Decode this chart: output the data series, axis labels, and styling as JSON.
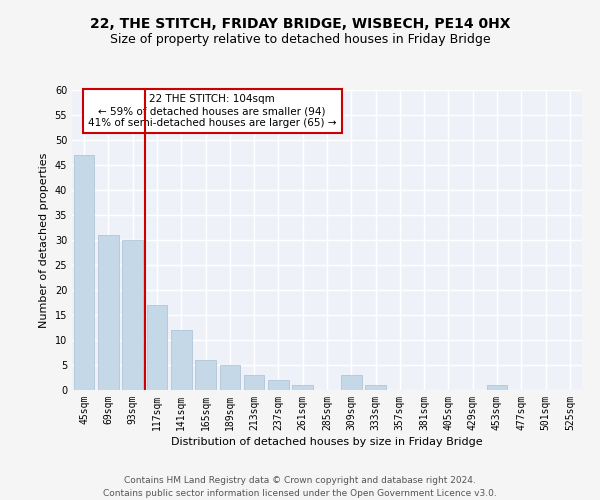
{
  "title": "22, THE STITCH, FRIDAY BRIDGE, WISBECH, PE14 0HX",
  "subtitle": "Size of property relative to detached houses in Friday Bridge",
  "xlabel": "Distribution of detached houses by size in Friday Bridge",
  "ylabel": "Number of detached properties",
  "categories": [
    "45sqm",
    "69sqm",
    "93sqm",
    "117sqm",
    "141sqm",
    "165sqm",
    "189sqm",
    "213sqm",
    "237sqm",
    "261sqm",
    "285sqm",
    "309sqm",
    "333sqm",
    "357sqm",
    "381sqm",
    "405sqm",
    "429sqm",
    "453sqm",
    "477sqm",
    "501sqm",
    "525sqm"
  ],
  "values": [
    47,
    31,
    30,
    17,
    12,
    6,
    5,
    3,
    2,
    1,
    0,
    3,
    1,
    0,
    0,
    0,
    0,
    1,
    0,
    0,
    0
  ],
  "bar_color": "#c5d8e8",
  "bar_edge_color": "#a8c0d4",
  "background_color": "#eef2f8",
  "grid_color": "#ffffff",
  "vline_x": 2.5,
  "vline_color": "#cc0000",
  "annotation_text": "22 THE STITCH: 104sqm\n← 59% of detached houses are smaller (94)\n41% of semi-detached houses are larger (65) →",
  "annotation_box_color": "#ffffff",
  "annotation_box_edge": "#cc0000",
  "ylim": [
    0,
    60
  ],
  "yticks": [
    0,
    5,
    10,
    15,
    20,
    25,
    30,
    35,
    40,
    45,
    50,
    55,
    60
  ],
  "footer": "Contains HM Land Registry data © Crown copyright and database right 2024.\nContains public sector information licensed under the Open Government Licence v3.0.",
  "title_fontsize": 10,
  "subtitle_fontsize": 9,
  "label_fontsize": 8,
  "tick_fontsize": 7,
  "footer_fontsize": 6.5,
  "annot_fontsize": 7.5
}
